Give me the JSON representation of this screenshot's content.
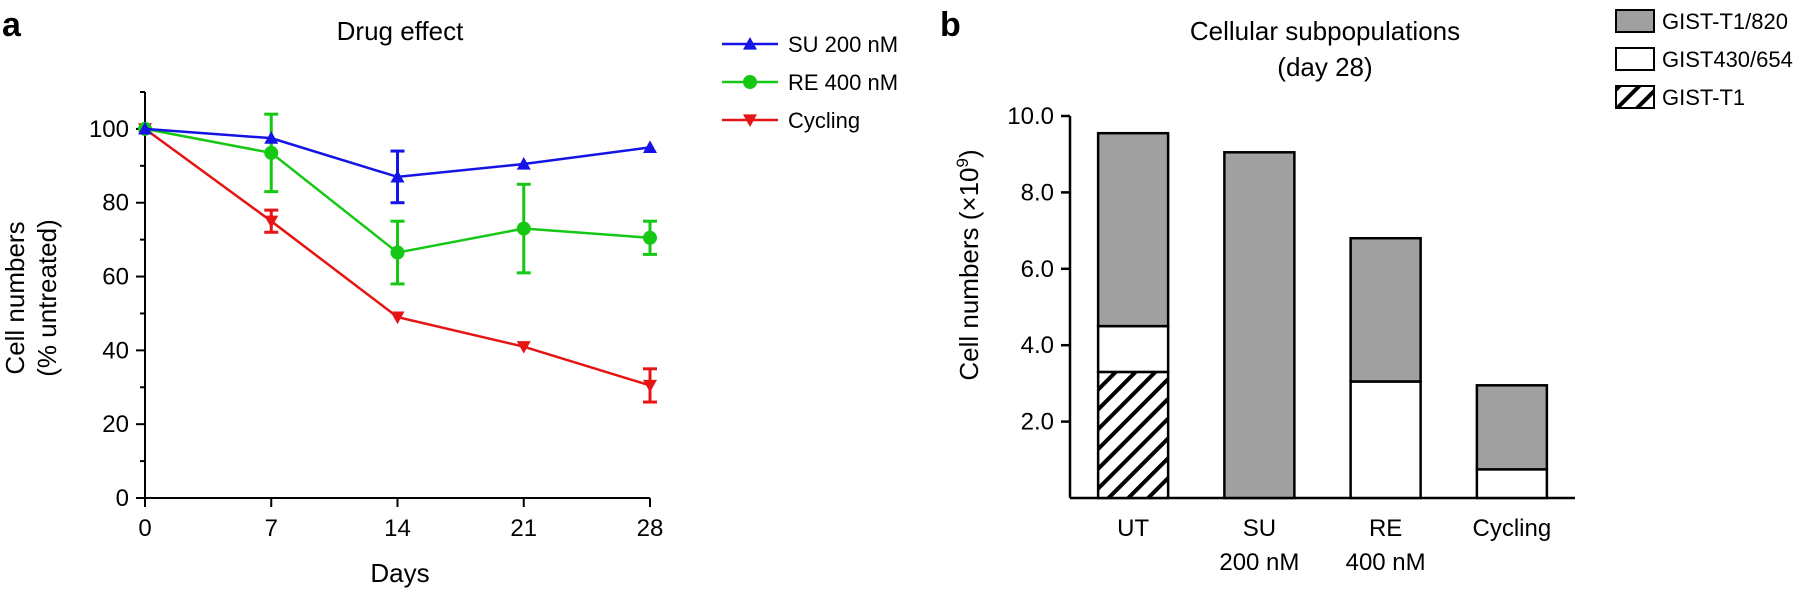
{
  "figure": {
    "panel_a_label": "a",
    "panel_b_label": "b"
  },
  "chart_data": [
    {
      "type": "line",
      "title": "Drug effect",
      "xlabel": "Days",
      "ylabel_line1": "Cell numbers",
      "ylabel_line2": "(% untreated)",
      "x": [
        0,
        7,
        14,
        21,
        28
      ],
      "x_tick_labels": [
        "0",
        "7",
        "14",
        "21",
        "28"
      ],
      "xlim": [
        0,
        28
      ],
      "ylim": [
        0,
        110
      ],
      "y_ticks": [
        0,
        20,
        40,
        60,
        80,
        100
      ],
      "y_tick_labels": [
        "0",
        "20",
        "40",
        "60",
        "80",
        "100"
      ],
      "grid": false,
      "legend_position": "top-right outside",
      "series": [
        {
          "name": "SU 200 nM",
          "color": "#1414e6",
          "marker": "triangle-up",
          "values": [
            100,
            97.5,
            87,
            90.5,
            95
          ],
          "errors": [
            0,
            0,
            7,
            0,
            0
          ]
        },
        {
          "name": "RE 400 nM",
          "color": "#14c814",
          "marker": "circle",
          "values": [
            100,
            93.5,
            66.5,
            73,
            70.5
          ],
          "errors": [
            0,
            10.5,
            8.5,
            12,
            4.5
          ]
        },
        {
          "name": "Cycling",
          "color": "#e61414",
          "marker": "triangle-down",
          "values": [
            100,
            75,
            49,
            41,
            30.5
          ],
          "errors": [
            0,
            3,
            0,
            0,
            4.5
          ]
        }
      ]
    },
    {
      "type": "bar",
      "stacked": true,
      "title_line1": "Cellular subpopulations",
      "title_line2": "(day 28)",
      "ylabel_main": "Cell numbers (×10",
      "ylabel_exp": "9",
      "ylabel_close": ")",
      "ylim": [
        0,
        10
      ],
      "y_ticks": [
        2,
        4,
        6,
        8,
        10
      ],
      "y_tick_labels": [
        "2.0",
        "4.0",
        "6.0",
        "8.0",
        "10.0"
      ],
      "categories": [
        {
          "line1": "UT",
          "line2": ""
        },
        {
          "line1": "SU",
          "line2": "200 nM"
        },
        {
          "line1": "RE",
          "line2": "400 nM"
        },
        {
          "line1": "Cycling",
          "line2": ""
        }
      ],
      "legend_position": "top-right outside",
      "series": [
        {
          "name": "GIST-T1",
          "fill": "hatch",
          "values": [
            3.3,
            0,
            0,
            0
          ]
        },
        {
          "name": "GIST430/654",
          "fill": "#ffffff",
          "values": [
            1.2,
            0,
            3.05,
            0.75
          ]
        },
        {
          "name": "GIST-T1/820",
          "fill": "#a0a0a0",
          "values": [
            5.05,
            9.05,
            3.75,
            2.2
          ]
        }
      ],
      "legend_order": [
        "GIST-T1/820",
        "GIST430/654",
        "GIST-T1"
      ]
    }
  ]
}
